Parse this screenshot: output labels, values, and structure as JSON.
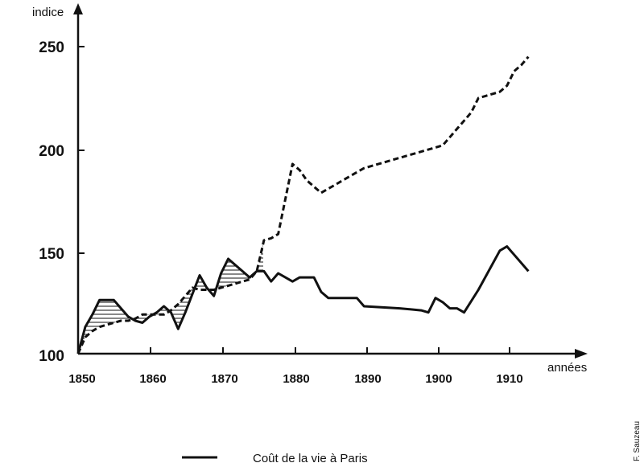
{
  "chart_data": {
    "type": "line",
    "xlabel": "années",
    "ylabel": "indice",
    "xlim": [
      1850,
      1913
    ],
    "ylim": [
      100,
      250
    ],
    "x_ticks": [
      "1850",
      "1860",
      "1870",
      "1880",
      "1890",
      "1900",
      "1910"
    ],
    "y_ticks": [
      "100",
      "150",
      "200",
      "250"
    ],
    "grid": false,
    "legend_position": "bottom",
    "credit": "F. Sauzeau",
    "series": [
      {
        "name": "Coût de la vie à Paris",
        "style": "solid",
        "color": "#111111",
        "x": [
          1850,
          1851,
          1852,
          1853,
          1854,
          1855,
          1856,
          1857,
          1858,
          1859,
          1860,
          1861,
          1862,
          1863,
          1864,
          1865,
          1866,
          1867,
          1868,
          1869,
          1870,
          1871,
          1872,
          1873,
          1874,
          1875,
          1876,
          1877,
          1878,
          1879,
          1880,
          1881,
          1882,
          1883,
          1884,
          1885,
          1886,
          1887,
          1888,
          1889,
          1890,
          1895,
          1898,
          1899,
          1900,
          1901,
          1902,
          1903,
          1904,
          1906,
          1909,
          1910,
          1913
        ],
        "values": [
          100,
          113,
          119,
          126,
          126,
          126,
          122,
          118,
          116,
          115,
          118,
          120,
          123,
          120,
          112,
          120,
          129,
          138,
          132,
          128,
          139,
          146,
          143,
          140,
          137,
          140,
          140,
          135,
          139,
          137,
          135,
          137,
          137,
          137,
          130,
          127,
          127,
          127,
          127,
          127,
          123,
          122,
          121,
          120,
          127,
          125,
          122,
          122,
          120,
          131,
          150,
          152,
          140
        ]
      },
      {
        "name": "",
        "style": "dashed",
        "color": "#111111",
        "x": [
          1850,
          1851,
          1852,
          1853,
          1854,
          1855,
          1856,
          1857,
          1858,
          1859,
          1860,
          1861,
          1862,
          1863,
          1864,
          1865,
          1866,
          1867,
          1868,
          1869,
          1870,
          1871,
          1872,
          1873,
          1874,
          1875,
          1876,
          1877,
          1878,
          1879,
          1880,
          1881,
          1882,
          1883,
          1884,
          1885,
          1886,
          1887,
          1888,
          1889,
          1890,
          1895,
          1900,
          1901,
          1902,
          1903,
          1904,
          1905,
          1906,
          1907,
          1908,
          1909,
          1910,
          1911,
          1912,
          1913
        ],
        "values": [
          100,
          108,
          111,
          113,
          114,
          115,
          116,
          116,
          117,
          119,
          119,
          119,
          119,
          121,
          124,
          128,
          132,
          131,
          131,
          131,
          132,
          133,
          134,
          135,
          136,
          140,
          155,
          156,
          158,
          175,
          192,
          189,
          184,
          181,
          178,
          180,
          182,
          184,
          186,
          188,
          190,
          195,
          200,
          201,
          205,
          209,
          213,
          217,
          224,
          225,
          226,
          227,
          230,
          237,
          240,
          244
        ]
      }
    ]
  }
}
